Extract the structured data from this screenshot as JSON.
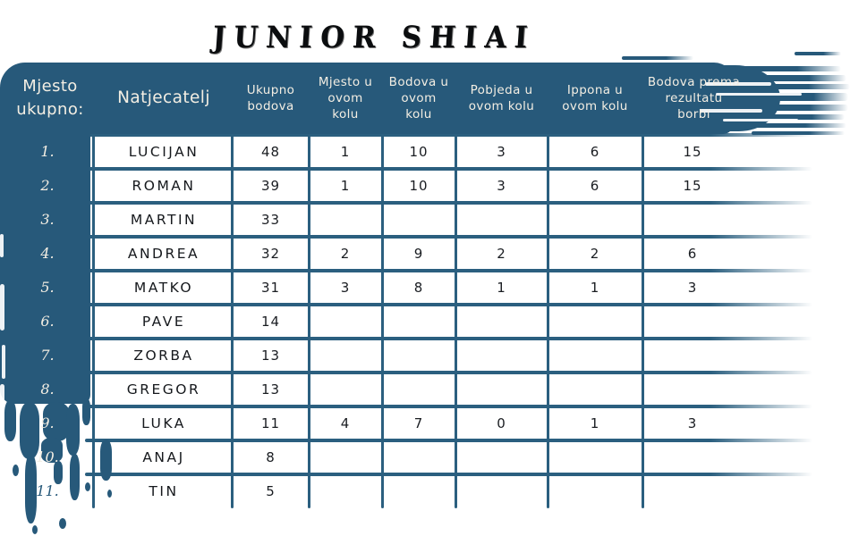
{
  "title": "JUNIOR SHIAI",
  "colors": {
    "brush_teal": "#27597a",
    "grid_line": "#2b5f7f",
    "header_text": "#f3eee3",
    "cell_text": "#1a1d22"
  },
  "table": {
    "columns": [
      {
        "id": "rank",
        "label": "Mjesto ukupno:",
        "label_lines": [
          "Mjesto",
          "ukupno:"
        ]
      },
      {
        "id": "name",
        "label": "Natjecatelj",
        "label_lines": [
          "Natjecatelj"
        ]
      },
      {
        "id": "total",
        "label": "Ukupno bodova",
        "label_lines": [
          "Ukupno",
          "bodova"
        ]
      },
      {
        "id": "round_place",
        "label": "Mjesto u ovom kolu",
        "label_lines": [
          "Mjesto u",
          "ovom",
          "kolu"
        ]
      },
      {
        "id": "round_points",
        "label": "Bodova u ovom kolu",
        "label_lines": [
          "Bodova u",
          "ovom",
          "kolu"
        ]
      },
      {
        "id": "round_wins",
        "label": "Pobjeda u ovom kolu",
        "label_lines": [
          "Pobjeda u",
          "ovom kolu"
        ]
      },
      {
        "id": "round_ippons",
        "label": "Ippona u ovom kolu",
        "label_lines": [
          "Ippona u",
          "ovom kolu"
        ]
      },
      {
        "id": "fight_points",
        "label": "Bodova prema rezultatu borbi",
        "label_lines": [
          "Bodova prema",
          "rezultatu",
          "borbi"
        ]
      }
    ],
    "rows": [
      {
        "rank": "1.",
        "name": "LUCIJAN",
        "total": "48",
        "round_place": "1",
        "round_points": "10",
        "round_wins": "3",
        "round_ippons": "6",
        "fight_points": "15"
      },
      {
        "rank": "2.",
        "name": "ROMAN",
        "total": "39",
        "round_place": "1",
        "round_points": "10",
        "round_wins": "3",
        "round_ippons": "6",
        "fight_points": "15"
      },
      {
        "rank": "3.",
        "name": "MARTIN",
        "total": "33",
        "round_place": "",
        "round_points": "",
        "round_wins": "",
        "round_ippons": "",
        "fight_points": ""
      },
      {
        "rank": "4.",
        "name": "ANDREA",
        "total": "32",
        "round_place": "2",
        "round_points": "9",
        "round_wins": "2",
        "round_ippons": "2",
        "fight_points": "6"
      },
      {
        "rank": "5.",
        "name": "MATKO",
        "total": "31",
        "round_place": "3",
        "round_points": "8",
        "round_wins": "1",
        "round_ippons": "1",
        "fight_points": "3"
      },
      {
        "rank": "6.",
        "name": "PAVE",
        "total": "14",
        "round_place": "",
        "round_points": "",
        "round_wins": "",
        "round_ippons": "",
        "fight_points": ""
      },
      {
        "rank": "7.",
        "name": "ZORBA",
        "total": "13",
        "round_place": "",
        "round_points": "",
        "round_wins": "",
        "round_ippons": "",
        "fight_points": ""
      },
      {
        "rank": "8.",
        "name": "GREGOR",
        "total": "13",
        "round_place": "",
        "round_points": "",
        "round_wins": "",
        "round_ippons": "",
        "fight_points": ""
      },
      {
        "rank": "9.",
        "name": "LUKA",
        "total": "11",
        "round_place": "4",
        "round_points": "7",
        "round_wins": "0",
        "round_ippons": "1",
        "fight_points": "3"
      },
      {
        "rank": "10.",
        "name": "ANAJ",
        "total": "8",
        "round_place": "",
        "round_points": "",
        "round_wins": "",
        "round_ippons": "",
        "fight_points": ""
      },
      {
        "rank": "11.",
        "name": "TIN",
        "total": "5",
        "round_place": "",
        "round_points": "",
        "round_wins": "",
        "round_ippons": "",
        "fight_points": ""
      }
    ]
  }
}
